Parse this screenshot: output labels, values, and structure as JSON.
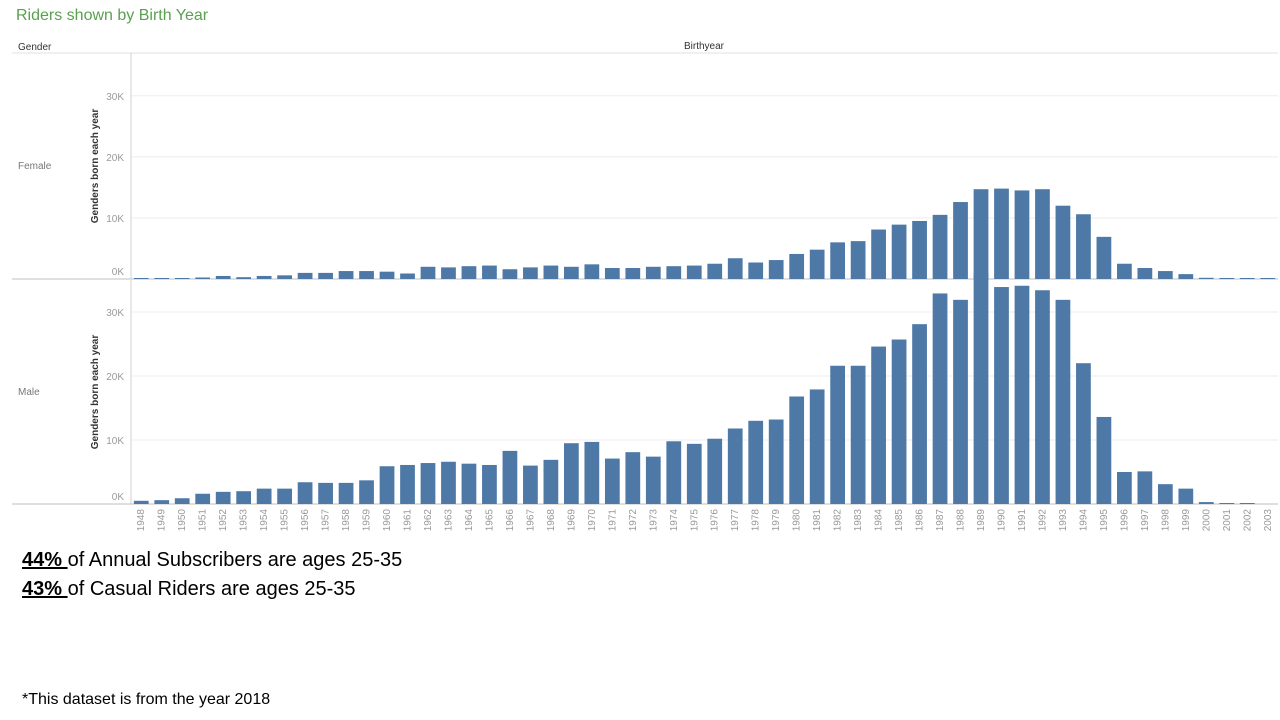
{
  "title": "Riders shown by Birth Year",
  "header": {
    "row_label": "Gender",
    "column_label": "Birthyear"
  },
  "chart_data": {
    "type": "bar",
    "x_label": "Birthyear",
    "y_label": "Genders born each year",
    "y_ticks": [
      0,
      10000,
      20000,
      30000
    ],
    "y_tick_labels": [
      "0K",
      "10K",
      "20K",
      "30K"
    ],
    "bar_color": "#4e79a7",
    "categories": [
      "1948",
      "1949",
      "1950",
      "1951",
      "1952",
      "1953",
      "1954",
      "1955",
      "1956",
      "1957",
      "1958",
      "1959",
      "1960",
      "1961",
      "1962",
      "1963",
      "1964",
      "1965",
      "1966",
      "1967",
      "1968",
      "1969",
      "1970",
      "1971",
      "1972",
      "1973",
      "1974",
      "1975",
      "1976",
      "1977",
      "1978",
      "1979",
      "1980",
      "1981",
      "1982",
      "1983",
      "1984",
      "1985",
      "1986",
      "1987",
      "1988",
      "1989",
      "1990",
      "1991",
      "1992",
      "1993",
      "1994",
      "1995",
      "1996",
      "1997",
      "1998",
      "1999",
      "2000",
      "2001",
      "2002",
      "2003"
    ],
    "series": [
      {
        "name": "Female",
        "ylim": [
          0,
          37000
        ],
        "values": [
          150,
          150,
          150,
          250,
          500,
          300,
          500,
          600,
          1000,
          1000,
          1300,
          1300,
          1200,
          900,
          2000,
          1900,
          2100,
          2200,
          1600,
          1900,
          2200,
          2000,
          2400,
          1800,
          1800,
          2000,
          2100,
          2200,
          2500,
          3400,
          2700,
          3100,
          4100,
          4800,
          6000,
          6200,
          8100,
          8900,
          9500,
          10500,
          12600,
          14700,
          14800,
          14500,
          14700,
          12000,
          10600,
          6900,
          2500,
          1800,
          1300,
          800,
          200,
          100,
          50,
          100
        ]
      },
      {
        "name": "Male",
        "ylim": [
          0,
          35000
        ],
        "values": [
          500,
          600,
          900,
          1600,
          1900,
          2000,
          2400,
          2400,
          3400,
          3300,
          3300,
          3700,
          5900,
          6100,
          6400,
          6600,
          6300,
          6100,
          8300,
          6000,
          6900,
          9500,
          9700,
          7100,
          8100,
          7400,
          9800,
          9400,
          10200,
          11800,
          13000,
          13200,
          16800,
          17900,
          21600,
          21600,
          24600,
          25700,
          28100,
          32900,
          31900,
          36100,
          33900,
          34100,
          33400,
          31900,
          22000,
          13600,
          5000,
          5100,
          3100,
          2400,
          300,
          100,
          100,
          0
        ]
      }
    ]
  },
  "stats": [
    {
      "pct": "44% ",
      "text": "of Annual Subscribers are ages 25-35"
    },
    {
      "pct": "43% ",
      "text": "of Casual Riders are ages 25-35"
    }
  ],
  "note": "*This dataset is from the year 2018"
}
